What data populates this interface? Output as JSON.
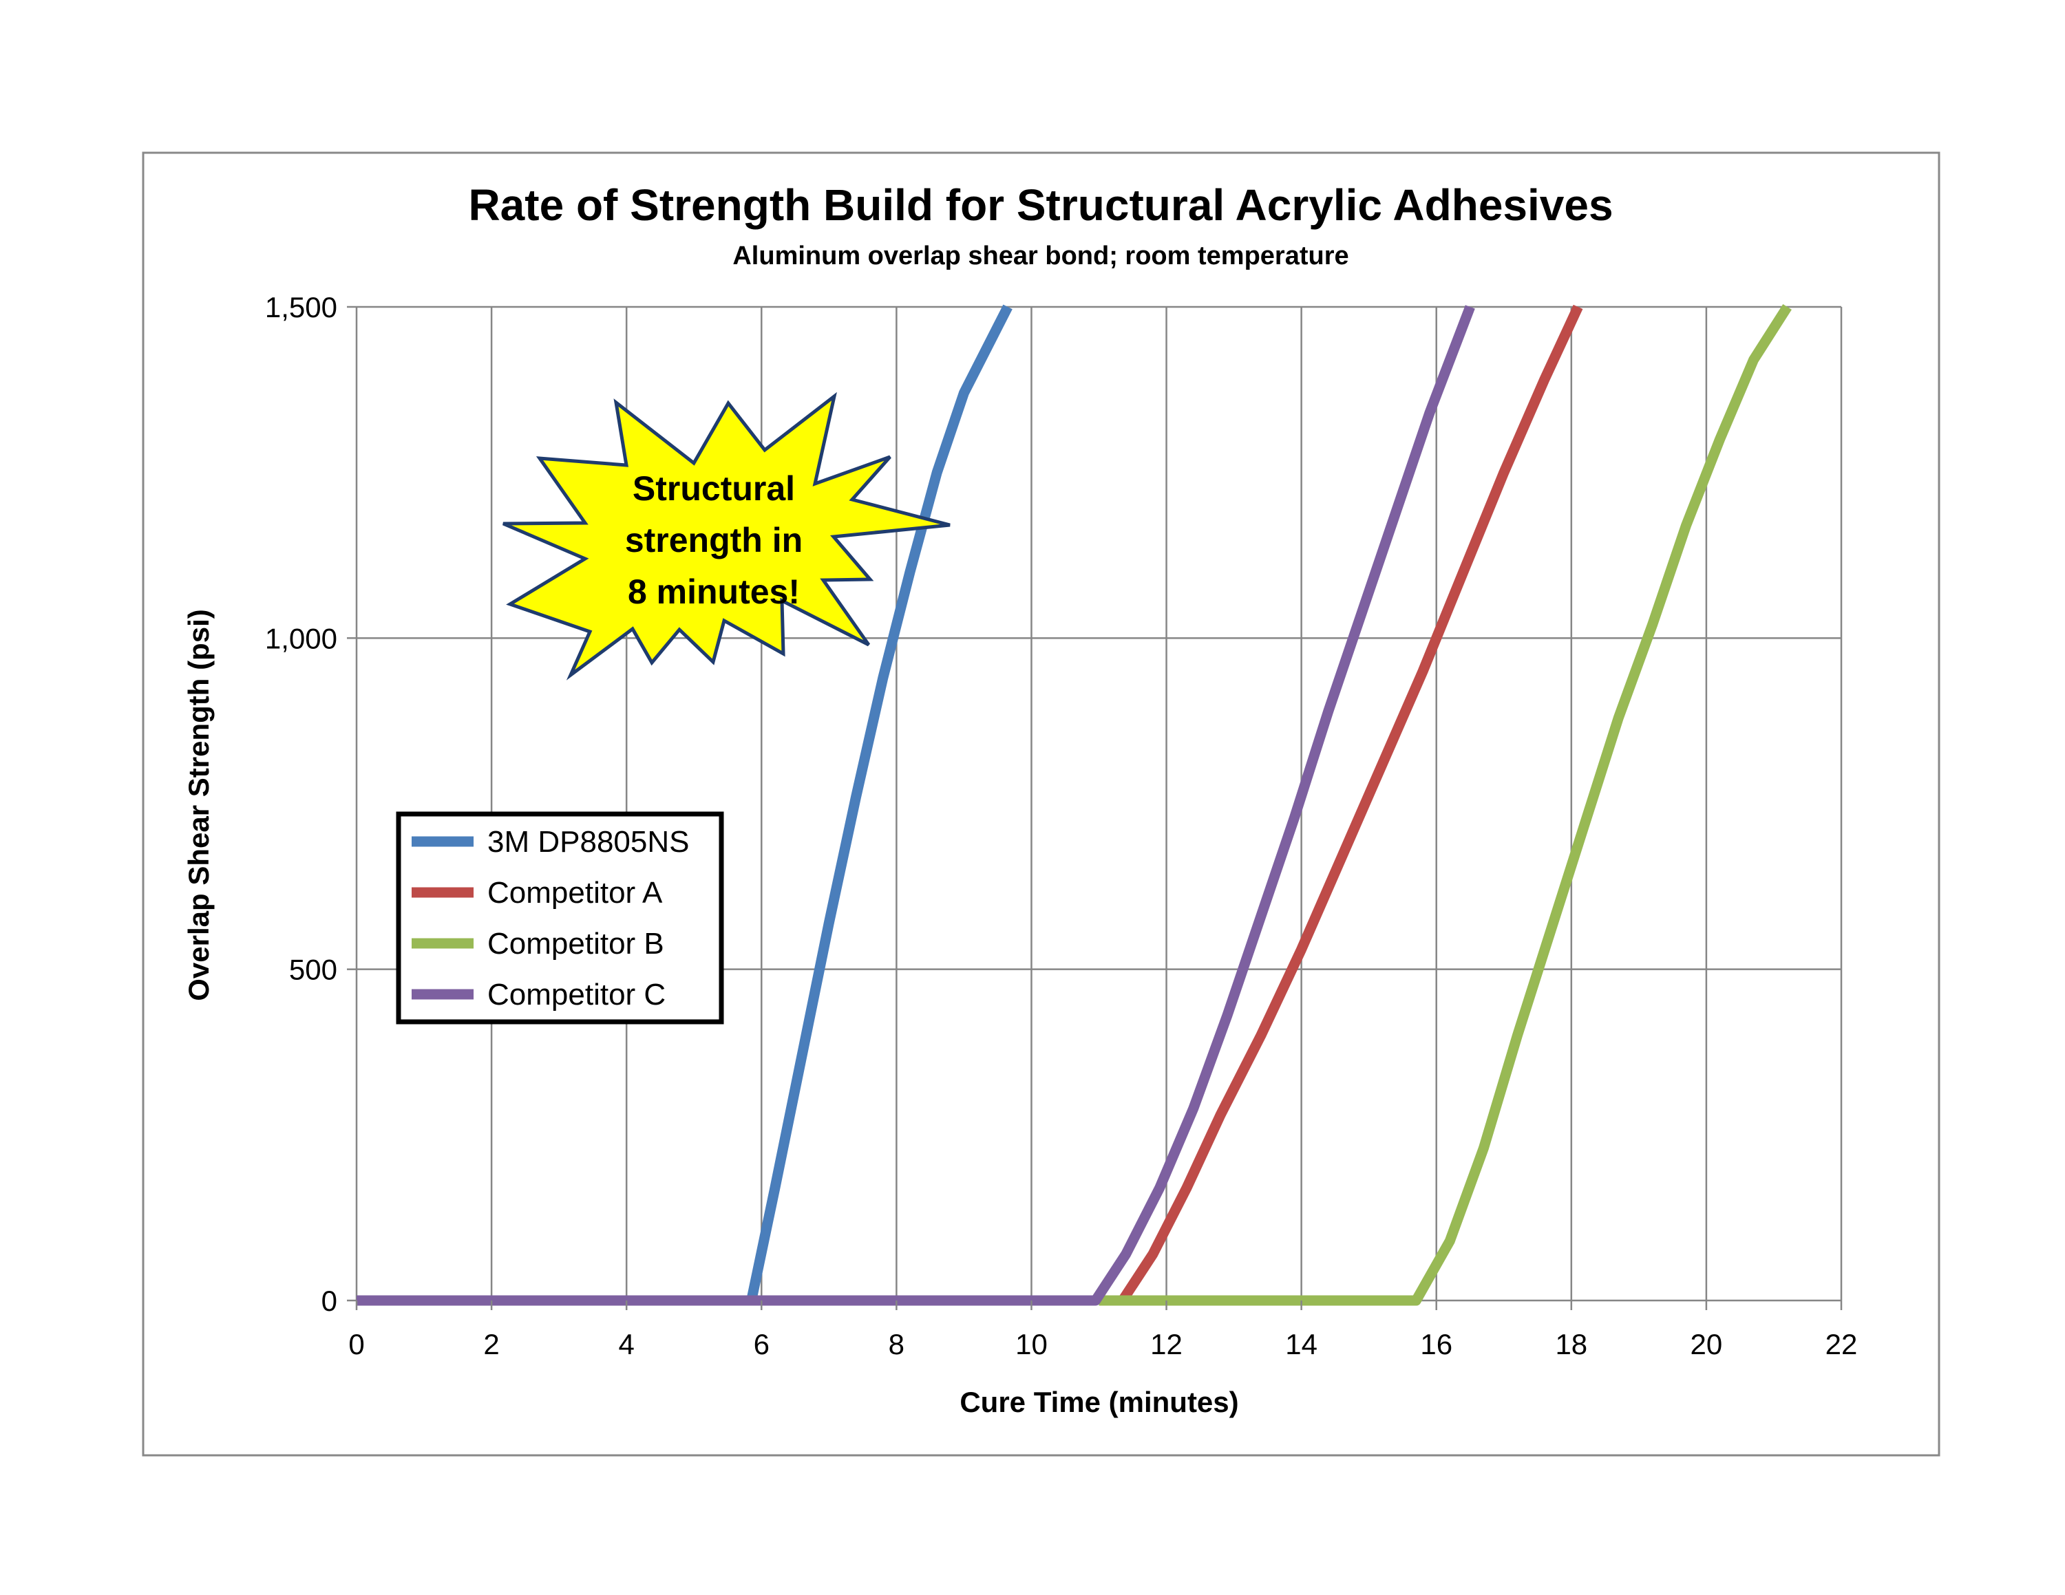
{
  "chart_data": {
    "type": "line",
    "title": "Rate of Strength Build for Structural Acrylic Adhesives",
    "subtitle": "Aluminum overlap shear bond; room temperature",
    "xlabel": "Cure Time (minutes)",
    "ylabel": "Overlap Shear Strength (psi)",
    "xlim": [
      0,
      22
    ],
    "ylim": [
      0,
      1500
    ],
    "x_ticks": [
      0,
      2,
      4,
      6,
      8,
      10,
      12,
      14,
      16,
      18,
      20,
      22
    ],
    "x_tick_labels": [
      "0",
      "2",
      "4",
      "6",
      "8",
      "10",
      "12",
      "14",
      "16",
      "18",
      "20",
      "22"
    ],
    "y_ticks": [
      0,
      500,
      1000,
      1500
    ],
    "y_tick_labels": [
      "0",
      "500",
      "1,000",
      "1,500"
    ],
    "grid": true,
    "legend_position": "left",
    "series": [
      {
        "name": "3M DP8805NS",
        "color": "#4a7ebb",
        "points": [
          [
            0,
            0
          ],
          [
            5.85,
            0
          ],
          [
            6.2,
            170
          ],
          [
            6.6,
            370
          ],
          [
            7.0,
            570
          ],
          [
            7.4,
            760
          ],
          [
            7.8,
            940
          ],
          [
            8.2,
            1100
          ],
          [
            8.6,
            1250
          ],
          [
            9.0,
            1370
          ],
          [
            9.65,
            1500
          ]
        ]
      },
      {
        "name": "Competitor A",
        "color": "#be4b48",
        "points": [
          [
            11.35,
            0
          ],
          [
            11.8,
            70
          ],
          [
            12.3,
            170
          ],
          [
            12.8,
            280
          ],
          [
            13.4,
            400
          ],
          [
            14.0,
            530
          ],
          [
            14.6,
            670
          ],
          [
            15.2,
            810
          ],
          [
            15.8,
            950
          ],
          [
            16.4,
            1100
          ],
          [
            17.0,
            1250
          ],
          [
            17.6,
            1390
          ],
          [
            18.1,
            1500
          ]
        ]
      },
      {
        "name": "Competitor B",
        "color": "#98b954",
        "points": [
          [
            11.0,
            0
          ],
          [
            15.7,
            0
          ],
          [
            16.2,
            90
          ],
          [
            16.7,
            230
          ],
          [
            17.2,
            400
          ],
          [
            17.7,
            560
          ],
          [
            18.2,
            720
          ],
          [
            18.7,
            880
          ],
          [
            19.2,
            1020
          ],
          [
            19.7,
            1170
          ],
          [
            20.2,
            1300
          ],
          [
            20.7,
            1420
          ],
          [
            21.2,
            1500
          ]
        ]
      },
      {
        "name": "Competitor C",
        "color": "#7d60a0",
        "points": [
          [
            0,
            0
          ],
          [
            10.95,
            0
          ],
          [
            11.4,
            70
          ],
          [
            11.9,
            170
          ],
          [
            12.4,
            290
          ],
          [
            12.9,
            430
          ],
          [
            13.4,
            580
          ],
          [
            13.9,
            730
          ],
          [
            14.4,
            890
          ],
          [
            14.9,
            1040
          ],
          [
            15.4,
            1190
          ],
          [
            15.9,
            1340
          ],
          [
            16.5,
            1500
          ]
        ]
      }
    ],
    "annotation": {
      "lines": [
        "Structural",
        "strength in",
        "8 minutes!"
      ],
      "fill": "#ffff00",
      "stroke": "#1f3c6e"
    }
  }
}
